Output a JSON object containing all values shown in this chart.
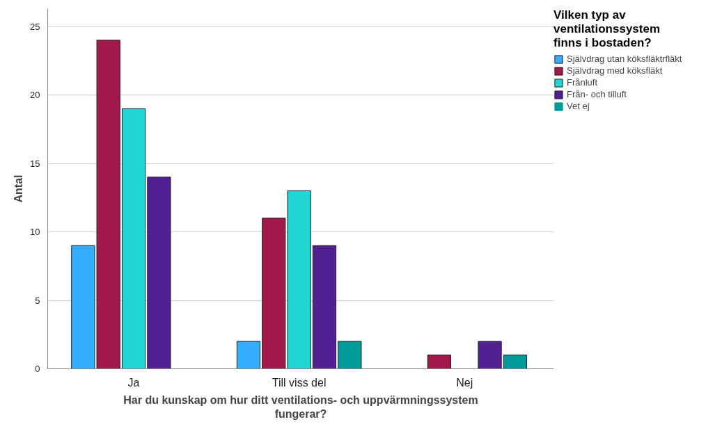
{
  "chart_data": {
    "type": "bar",
    "xlabel": "Har du kunskap om hur ditt ventilations- och uppvärmningssystem fungerar?",
    "ylabel": "Antal",
    "legend_title": "Vilken typ av ventilationssystem finns i bostaden?",
    "categories": [
      "Ja",
      "Till viss del",
      "Nej"
    ],
    "series": [
      {
        "name": "Självdrag utan köksfläktrfläkt",
        "color": "#33adff",
        "values": [
          9,
          2,
          0
        ]
      },
      {
        "name": "Självdrag med köksfläkt",
        "color": "#a1194a",
        "values": [
          24,
          11,
          1
        ]
      },
      {
        "name": "Frånluft",
        "color": "#21d5d5",
        "values": [
          19,
          13,
          0
        ]
      },
      {
        "name": "Från- och tilluft",
        "color": "#512194",
        "values": [
          14,
          9,
          2
        ]
      },
      {
        "name": "Vet ej",
        "color": "#009a9a",
        "values": [
          0,
          2,
          1
        ]
      }
    ],
    "ylim": [
      0,
      26.3
    ],
    "yticks": [
      0,
      5,
      10,
      15,
      20,
      25
    ],
    "grid": "y",
    "legend": "right"
  }
}
